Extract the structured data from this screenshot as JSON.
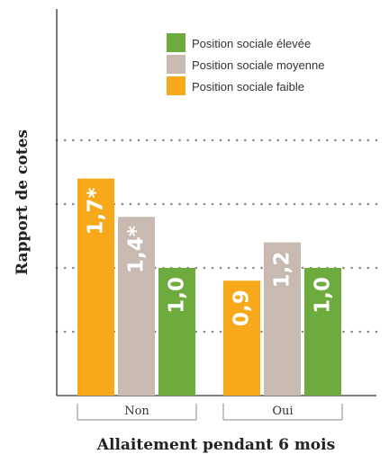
{
  "chart_data": {
    "type": "bar",
    "xlabel": "Allaitement pendant 6 mois",
    "ylabel": "Rapport de cotes",
    "categories": [
      "Non",
      "Oui"
    ],
    "series": [
      {
        "name": "Position sociale faible",
        "color": "#F7A81B",
        "values": [
          1.7,
          0.9
        ],
        "labels": [
          "1,7*",
          "0,9"
        ]
      },
      {
        "name": "Position sociale moyenne",
        "color": "#C8BAB0",
        "values": [
          1.4,
          1.2
        ],
        "labels": [
          "1,4*",
          "1,2"
        ]
      },
      {
        "name": "Position sociale élevée",
        "color": "#6EAB3E",
        "values": [
          1.0,
          1.0
        ],
        "labels": [
          "1,0",
          "1,0"
        ]
      }
    ],
    "legend_order": [
      "Position sociale élevée",
      "Position sociale moyenne",
      "Position sociale faible"
    ],
    "legend_position": "top-right",
    "grid": "dotted horizontal",
    "ylim": [
      0,
      2.0
    ],
    "gridlines": [
      0.5,
      1.0,
      1.5,
      2.0
    ]
  }
}
